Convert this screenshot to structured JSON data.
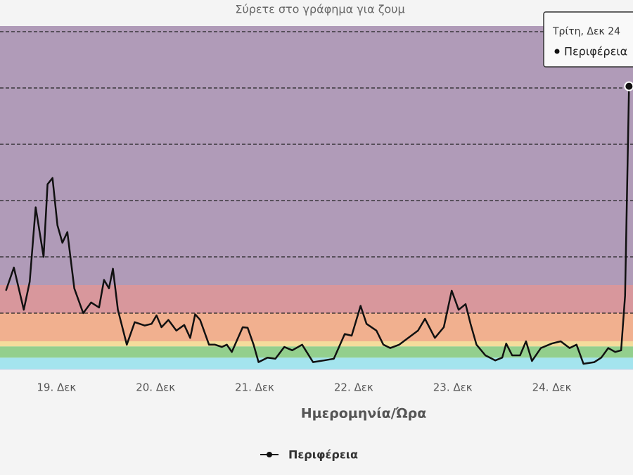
{
  "chart_data": {
    "type": "line",
    "subtitle": "Σύρετε στο γράφημα για ζουμ",
    "x_label": "Ημερομηνία/Ώρα",
    "tooltip": {
      "header": "Τρίτη, Δεκ 24"
    },
    "xlim": [
      18.43,
      24.82
    ],
    "xticks": [
      {
        "value": 19,
        "label": "19. Δεκ"
      },
      {
        "value": 20,
        "label": "20. Δεκ"
      },
      {
        "value": 21,
        "label": "21. Δεκ"
      },
      {
        "value": 22,
        "label": "22. Δεκ"
      },
      {
        "value": 23,
        "label": "23. Δεκ"
      },
      {
        "value": 24,
        "label": "24. Δεκ"
      }
    ],
    "ylim": [
      0,
      6.1
    ],
    "yticks": [
      1,
      2,
      3,
      4,
      5,
      6
    ],
    "grid": true,
    "bands": [
      {
        "from": 0,
        "to": 0.21,
        "color": "#a4e4ee"
      },
      {
        "from": 0.21,
        "to": 0.41,
        "color": "#93cf8d"
      },
      {
        "from": 0.41,
        "to": 0.5,
        "color": "#f4dc9c"
      },
      {
        "from": 0.5,
        "to": 1.0,
        "color": "#f1b08f"
      },
      {
        "from": 1.0,
        "to": 1.5,
        "color": "#d8979c"
      },
      {
        "from": 1.5,
        "to": 6.1,
        "color": "#b09bb8"
      }
    ],
    "series": [
      {
        "name": "Περιφέρεια",
        "color": "#111111",
        "x": [
          18.49,
          18.57,
          18.67,
          18.73,
          18.79,
          18.87,
          18.91,
          18.96,
          19.01,
          19.06,
          19.11,
          19.18,
          19.27,
          19.35,
          19.43,
          19.48,
          19.53,
          19.57,
          19.62,
          19.71,
          19.79,
          19.89,
          19.96,
          20.01,
          20.06,
          20.13,
          20.21,
          20.29,
          20.35,
          20.4,
          20.45,
          20.54,
          20.6,
          20.67,
          20.72,
          20.77,
          20.88,
          20.93,
          20.99,
          21.04,
          21.13,
          21.21,
          21.3,
          21.38,
          21.48,
          21.59,
          21.7,
          21.8,
          21.91,
          21.98,
          22.07,
          22.13,
          22.23,
          22.3,
          22.37,
          22.46,
          22.55,
          22.65,
          22.72,
          22.82,
          22.91,
          22.99,
          23.06,
          23.13,
          23.18,
          23.24,
          23.33,
          23.43,
          23.5,
          23.54,
          23.6,
          23.68,
          23.74,
          23.8,
          23.89,
          24.0,
          24.09,
          24.18,
          24.25,
          24.32,
          24.43,
          24.5,
          24.57,
          24.64,
          24.7,
          24.74,
          24.78
        ],
        "values": [
          1.4,
          1.81,
          1.06,
          1.56,
          2.88,
          2.0,
          3.29,
          3.4,
          2.56,
          2.25,
          2.44,
          1.44,
          1.0,
          1.19,
          1.1,
          1.59,
          1.44,
          1.79,
          1.06,
          0.44,
          0.84,
          0.78,
          0.81,
          0.96,
          0.75,
          0.88,
          0.69,
          0.79,
          0.56,
          0.98,
          0.88,
          0.44,
          0.44,
          0.4,
          0.44,
          0.31,
          0.75,
          0.74,
          0.44,
          0.13,
          0.21,
          0.19,
          0.4,
          0.34,
          0.44,
          0.13,
          0.16,
          0.19,
          0.63,
          0.6,
          1.13,
          0.81,
          0.69,
          0.44,
          0.38,
          0.44,
          0.56,
          0.69,
          0.9,
          0.56,
          0.75,
          1.4,
          1.06,
          1.16,
          0.81,
          0.44,
          0.25,
          0.16,
          0.21,
          0.46,
          0.25,
          0.25,
          0.5,
          0.15,
          0.38,
          0.46,
          0.5,
          0.38,
          0.44,
          0.1,
          0.13,
          0.21,
          0.38,
          0.31,
          0.34,
          1.31,
          5.03
        ]
      }
    ]
  }
}
